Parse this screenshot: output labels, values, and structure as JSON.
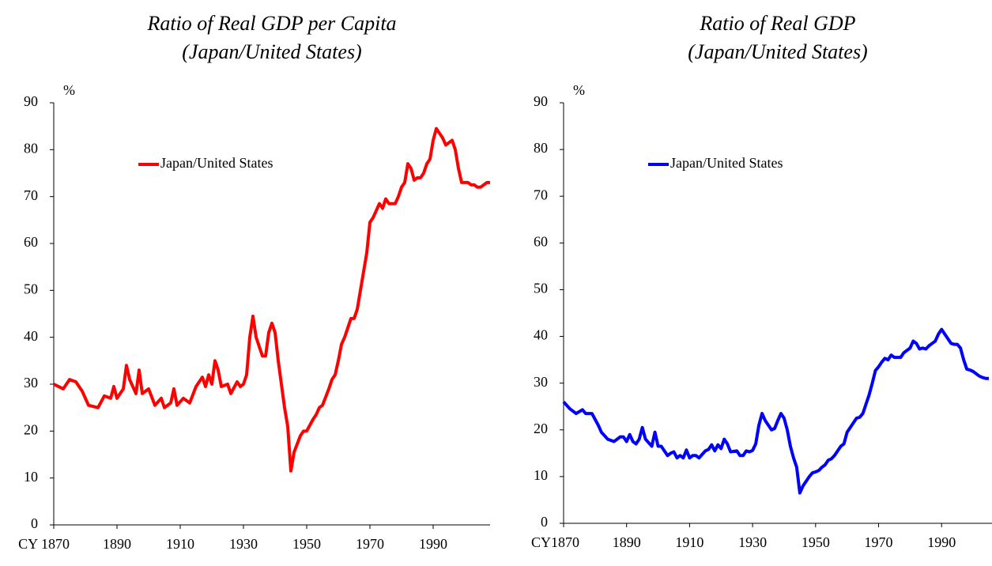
{
  "chart_data": [
    {
      "type": "line",
      "title": "Ratio of Real GDP per Capita",
      "subtitle": "(Japan/United States)",
      "y_label": "%",
      "x": [
        1870,
        1873,
        1875,
        1877,
        1879,
        1881,
        1884,
        1886,
        1888,
        1889,
        1890,
        1892,
        1893,
        1894,
        1896,
        1897,
        1898,
        1900,
        1902,
        1904,
        1905,
        1907,
        1908,
        1909,
        1911,
        1913,
        1915,
        1917,
        1918,
        1919,
        1920,
        1921,
        1922,
        1923,
        1925,
        1926,
        1928,
        1929,
        1930,
        1931,
        1932,
        1933,
        1934,
        1936,
        1937,
        1938,
        1939,
        1940,
        1941,
        1942,
        1943,
        1944,
        1945,
        1946,
        1948,
        1949,
        1950,
        1952,
        1953,
        1954,
        1955,
        1957,
        1958,
        1959,
        1960,
        1961,
        1962,
        1963,
        1964,
        1965,
        1966,
        1967,
        1968,
        1969,
        1970,
        1971,
        1972,
        1973,
        1974,
        1975,
        1976,
        1978,
        1979,
        1980,
        1981,
        1982,
        1983,
        1984,
        1985,
        1986,
        1987,
        1988,
        1989,
        1990,
        1991,
        1992,
        1993,
        1994,
        1995,
        1996,
        1997,
        1998,
        1999,
        2000,
        2001,
        2002,
        2003,
        2004,
        2005,
        2006,
        2007,
        2008
      ],
      "series": [
        {
          "name": "Japan/United States",
          "color": "#ff0000",
          "values": [
            30,
            29,
            31,
            30.5,
            28.5,
            25.5,
            25,
            27.5,
            27,
            29.5,
            27,
            29,
            34,
            31,
            28,
            33,
            28,
            29,
            25.5,
            27,
            25,
            26,
            29,
            25.5,
            27,
            26,
            29.5,
            31.5,
            29.5,
            32,
            30,
            35,
            33,
            29.5,
            30,
            28,
            30.5,
            29.5,
            30,
            32,
            40,
            44.5,
            40,
            36,
            36,
            41,
            43,
            41,
            35,
            30,
            25,
            21,
            11.5,
            15.5,
            19,
            20,
            20,
            22.5,
            23.5,
            25,
            25.5,
            29,
            31,
            32,
            35,
            38.5,
            40,
            42,
            44,
            44,
            46,
            50,
            54,
            58,
            64.5,
            65.5,
            67,
            68.5,
            67.5,
            69.5,
            68.5,
            68.5,
            70,
            72,
            73,
            77,
            76,
            73.5,
            74,
            74,
            75,
            77,
            78,
            82,
            84.5,
            83.5,
            82.5,
            81,
            81.5,
            82,
            80,
            76,
            73,
            73,
            73,
            72.5,
            72.5,
            72,
            72,
            72.5,
            73,
            73
          ]
        }
      ],
      "xlim": [
        1870,
        2008
      ],
      "ylim": [
        0,
        90
      ],
      "xticks": [
        {
          "value": 1870,
          "label": "CY 1870"
        },
        1890,
        1910,
        1930,
        1950,
        1970,
        1990
      ],
      "yticks": [
        0,
        10,
        20,
        30,
        40,
        50,
        60,
        70,
        80,
        90
      ],
      "legend": "upper left"
    },
    {
      "type": "line",
      "title": "Ratio of Real GDP",
      "subtitle": "(Japan/United States)",
      "y_label": "%",
      "x": [
        1870,
        1872,
        1874,
        1876,
        1877,
        1879,
        1881,
        1882,
        1884,
        1886,
        1888,
        1889,
        1890,
        1891,
        1892,
        1893,
        1894,
        1895,
        1896,
        1898,
        1899,
        1900,
        1901,
        1903,
        1904,
        1905,
        1906,
        1907,
        1908,
        1909,
        1910,
        1911,
        1912,
        1913,
        1915,
        1916,
        1917,
        1918,
        1919,
        1920,
        1921,
        1922,
        1923,
        1925,
        1926,
        1927,
        1928,
        1929,
        1930,
        1931,
        1932,
        1933,
        1934,
        1936,
        1937,
        1938,
        1939,
        1940,
        1941,
        1942,
        1943,
        1944,
        1945,
        1946,
        1948,
        1949,
        1950,
        1951,
        1952,
        1953,
        1954,
        1955,
        1956,
        1957,
        1958,
        1959,
        1960,
        1961,
        1962,
        1963,
        1964,
        1965,
        1966,
        1967,
        1968,
        1969,
        1970,
        1971,
        1972,
        1973,
        1974,
        1975,
        1977,
        1978,
        1979,
        1980,
        1981,
        1982,
        1983,
        1984,
        1985,
        1986,
        1987,
        1988,
        1989,
        1990,
        1991,
        1992,
        1993,
        1994,
        1995,
        1996,
        1997,
        1998,
        1999,
        2000,
        2001,
        2002,
        2003,
        2004,
        2005
      ],
      "series": [
        {
          "name": "Japan/United States",
          "color": "#0000ff",
          "values": [
            26,
            24.5,
            23.5,
            24.3,
            23.5,
            23.5,
            21,
            19.5,
            18,
            17.5,
            18.5,
            18.5,
            17.5,
            19,
            17.5,
            17,
            18,
            20.5,
            18,
            16.5,
            19.5,
            16.5,
            16.5,
            14.5,
            15,
            15.3,
            14,
            14.5,
            14,
            15.7,
            14,
            14.5,
            14.5,
            14,
            15.5,
            15.8,
            16.8,
            15.5,
            16.8,
            16,
            18,
            17,
            15.3,
            15.5,
            14.5,
            14.5,
            15.5,
            15.3,
            15.6,
            17,
            21,
            23.5,
            22,
            20,
            20.3,
            22,
            23.5,
            22.5,
            20,
            16.5,
            14,
            12,
            6.5,
            8,
            10,
            10.8,
            11,
            11.3,
            12,
            12.5,
            13.5,
            13.8,
            14.5,
            15.5,
            16.5,
            17,
            19.5,
            20.5,
            21.5,
            22.5,
            22.7,
            23.5,
            25.5,
            27.5,
            30,
            32.7,
            33.5,
            34.5,
            35.3,
            35,
            36,
            35.5,
            35.5,
            36.5,
            37,
            37.5,
            39,
            38.5,
            37.3,
            37.5,
            37.3,
            38,
            38.5,
            39,
            40.5,
            41.5,
            40.5,
            39.5,
            38.5,
            38.3,
            38.3,
            37.5,
            35,
            33,
            32.8,
            32.5,
            32,
            31.5,
            31.2,
            31,
            31
          ]
        }
      ],
      "xlim": [
        1870,
        2006
      ],
      "ylim": [
        0,
        90
      ],
      "xticks": [
        {
          "value": 1870,
          "label": "CY1870"
        },
        1890,
        1910,
        1930,
        1950,
        1970,
        1990
      ],
      "yticks": [
        0,
        10,
        20,
        30,
        40,
        50,
        60,
        70,
        80,
        90
      ],
      "legend": "upper left"
    }
  ]
}
